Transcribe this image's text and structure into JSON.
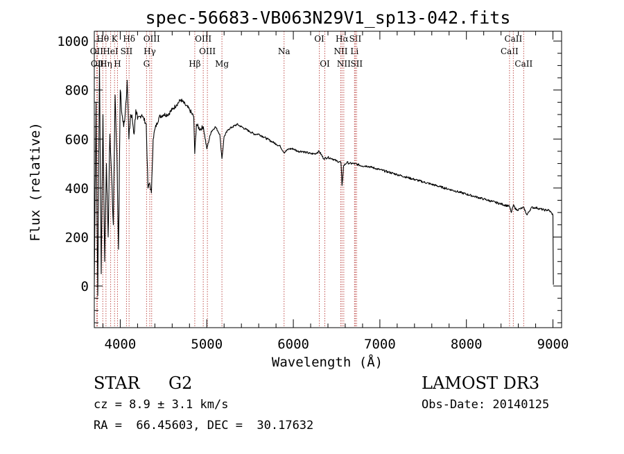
{
  "chart_data": {
    "type": "line",
    "title": "spec-56683-VB063N29V1_sp13-042.fits",
    "xlabel": "Wavelength (Å)",
    "ylabel": "Flux (relative)",
    "xlim": [
      3700,
      9100
    ],
    "ylim": [
      -170,
      1040
    ],
    "xticks": [
      4000,
      5000,
      6000,
      7000,
      8000,
      9000
    ],
    "xtick_labels": [
      "4000",
      "5000",
      "6000",
      "7000",
      "8000",
      "9000"
    ],
    "yticks": [
      0,
      200,
      400,
      600,
      800,
      1000
    ],
    "ytick_labels": [
      "0",
      "200",
      "400",
      "600",
      "800",
      "1000"
    ],
    "grid": false,
    "series": [
      {
        "name": "flux",
        "x": [
          3700,
          3720,
          3740,
          3760,
          3780,
          3800,
          3820,
          3840,
          3860,
          3880,
          3900,
          3920,
          3940,
          3960,
          3980,
          4000,
          4020,
          4040,
          4060,
          4080,
          4100,
          4120,
          4140,
          4160,
          4180,
          4200,
          4250,
          4300,
          4320,
          4340,
          4360,
          4380,
          4400,
          4450,
          4500,
          4550,
          4600,
          4650,
          4700,
          4750,
          4800,
          4850,
          4861,
          4880,
          4920,
          4960,
          5000,
          5050,
          5100,
          5150,
          5175,
          5200,
          5250,
          5300,
          5350,
          5400,
          5450,
          5500,
          5550,
          5600,
          5650,
          5700,
          5750,
          5800,
          5850,
          5893,
          5950,
          6000,
          6050,
          6100,
          6150,
          6200,
          6250,
          6300,
          6350,
          6400,
          6450,
          6500,
          6550,
          6563,
          6580,
          6620,
          6650,
          6700,
          6750,
          6800,
          6850,
          6900,
          6950,
          7000,
          7100,
          7200,
          7300,
          7400,
          7500,
          7600,
          7700,
          7800,
          7900,
          8000,
          8100,
          8200,
          8300,
          8400,
          8498,
          8520,
          8542,
          8580,
          8620,
          8662,
          8700,
          8750,
          8800,
          8850,
          8900,
          8950,
          8980,
          9000,
          9005
        ],
        "y": [
          0,
          750,
          -40,
          920,
          50,
          700,
          100,
          500,
          200,
          620,
          450,
          250,
          780,
          550,
          150,
          800,
          700,
          650,
          720,
          840,
          600,
          700,
          680,
          620,
          720,
          680,
          700,
          660,
          400,
          420,
          380,
          600,
          640,
          690,
          700,
          700,
          720,
          740,
          760,
          740,
          720,
          690,
          540,
          660,
          640,
          650,
          560,
          630,
          650,
          620,
          520,
          610,
          640,
          650,
          660,
          650,
          640,
          630,
          620,
          620,
          610,
          600,
          590,
          580,
          570,
          545,
          560,
          560,
          550,
          550,
          545,
          540,
          540,
          550,
          520,
          525,
          520,
          510,
          505,
          410,
          490,
          505,
          500,
          500,
          495,
          490,
          490,
          485,
          480,
          475,
          465,
          455,
          445,
          435,
          425,
          415,
          405,
          395,
          385,
          375,
          365,
          355,
          345,
          335,
          325,
          300,
          330,
          310,
          315,
          320,
          290,
          320,
          320,
          315,
          310,
          310,
          300,
          290,
          5
        ]
      }
    ],
    "line_annotations": [
      {
        "wavelength": 3727,
        "label": "OII",
        "row": 1
      },
      {
        "wavelength": 3736,
        "label": "OII",
        "row": 2
      },
      {
        "wavelength": 3798,
        "label": "Hθ",
        "row": 0
      },
      {
        "wavelength": 3835,
        "label": "Hη",
        "row": 2
      },
      {
        "wavelength": 3889,
        "label": "HeI",
        "row": 1
      },
      {
        "wavelength": 3934,
        "label": "K",
        "row": 0
      },
      {
        "wavelength": 3968,
        "label": "H",
        "row": 2
      },
      {
        "wavelength": 4072,
        "label": "SII",
        "row": 1
      },
      {
        "wavelength": 4102,
        "label": "Hδ",
        "row": 0
      },
      {
        "wavelength": 4304,
        "label": "G",
        "row": 2
      },
      {
        "wavelength": 4341,
        "label": "Hγ",
        "row": 1
      },
      {
        "wavelength": 4363,
        "label": "OIII",
        "row": 0
      },
      {
        "wavelength": 4861,
        "label": "Hβ",
        "row": 2
      },
      {
        "wavelength": 4959,
        "label": "OIII",
        "row": 0
      },
      {
        "wavelength": 5007,
        "label": "OIII",
        "row": 1
      },
      {
        "wavelength": 5175,
        "label": "Mg",
        "row": 2
      },
      {
        "wavelength": 5893,
        "label": "Na",
        "row": 1
      },
      {
        "wavelength": 6300,
        "label": "OI",
        "row": 0
      },
      {
        "wavelength": 6364,
        "label": "OI",
        "row": 2
      },
      {
        "wavelength": 6548,
        "label": "NII",
        "row": 1
      },
      {
        "wavelength": 6563,
        "label": "Hα",
        "row": 0
      },
      {
        "wavelength": 6583,
        "label": "NII",
        "row": 2
      },
      {
        "wavelength": 6707,
        "label": "Li",
        "row": 1
      },
      {
        "wavelength": 6716,
        "label": "SII",
        "row": 0
      },
      {
        "wavelength": 6731,
        "label": "SII",
        "row": 2
      },
      {
        "wavelength": 8498,
        "label": "CaII",
        "row": 1
      },
      {
        "wavelength": 8542,
        "label": "CaII",
        "row": 0
      },
      {
        "wavelength": 8662,
        "label": "CaII",
        "row": 2
      }
    ]
  },
  "info": {
    "object_class": "STAR",
    "subclass": "G2",
    "survey": "LAMOST DR3",
    "redshift": "cz = 8.9 ± 3.1 km/s",
    "obs_date": "Obs-Date: 20140125",
    "coords": "RA =  66.45603, DEC =  30.17632"
  },
  "colors": {
    "axis": "#000000",
    "line_marker": "#c0504d",
    "spectrum": "#000000"
  }
}
